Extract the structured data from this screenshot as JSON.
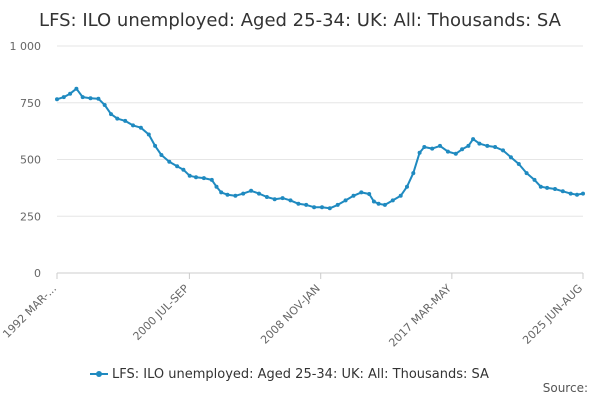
{
  "chart_data": {
    "type": "line",
    "title": "LFS: ILO unemployed: Aged 25-34: UK: All: Thousands: SA",
    "xlabel": "",
    "ylabel": "",
    "ylim": [
      0,
      1000
    ],
    "y_ticks": [
      0,
      250,
      500,
      750,
      1000
    ],
    "y_tick_labels": [
      "0",
      "250",
      "500",
      "750",
      "1 000"
    ],
    "x_tick_labels": [
      "1992 MAR-...",
      "2000 JUL-SEP",
      "2008 NOV-JAN",
      "2017 MAR-MAY",
      "2025 JUN-AUG"
    ],
    "x_tick_years": [
      1992.17,
      2000.58,
      2008.92,
      2017.25,
      2025.58
    ],
    "x_range": [
      1992.17,
      2025.58
    ],
    "grid": true,
    "legend_position": "bottom",
    "series": [
      {
        "name": "LFS: ILO unemployed: Aged 25-34: UK: All: Thousands: SA",
        "color": "#1f8ac0",
        "points": [
          [
            1992.17,
            765
          ],
          [
            1992.6,
            775
          ],
          [
            1993.0,
            790
          ],
          [
            1993.4,
            812
          ],
          [
            1993.8,
            775
          ],
          [
            1994.3,
            770
          ],
          [
            1994.8,
            768
          ],
          [
            1995.2,
            740
          ],
          [
            1995.6,
            700
          ],
          [
            1996.0,
            680
          ],
          [
            1996.5,
            670
          ],
          [
            1997.0,
            650
          ],
          [
            1997.5,
            640
          ],
          [
            1998.0,
            610
          ],
          [
            1998.4,
            560
          ],
          [
            1998.8,
            520
          ],
          [
            1999.3,
            490
          ],
          [
            1999.8,
            470
          ],
          [
            2000.2,
            455
          ],
          [
            2000.6,
            428
          ],
          [
            2001.0,
            422
          ],
          [
            2001.5,
            418
          ],
          [
            2002.0,
            410
          ],
          [
            2002.3,
            380
          ],
          [
            2002.6,
            355
          ],
          [
            2003.0,
            345
          ],
          [
            2003.5,
            340
          ],
          [
            2004.0,
            350
          ],
          [
            2004.5,
            362
          ],
          [
            2005.0,
            350
          ],
          [
            2005.5,
            335
          ],
          [
            2006.0,
            325
          ],
          [
            2006.5,
            330
          ],
          [
            2007.0,
            320
          ],
          [
            2007.5,
            305
          ],
          [
            2008.0,
            300
          ],
          [
            2008.5,
            290
          ],
          [
            2009.0,
            290
          ],
          [
            2009.5,
            285
          ],
          [
            2010.0,
            300
          ],
          [
            2010.5,
            320
          ],
          [
            2011.0,
            340
          ],
          [
            2011.5,
            355
          ],
          [
            2012.0,
            348
          ],
          [
            2012.3,
            315
          ],
          [
            2012.6,
            305
          ],
          [
            2013.0,
            300
          ],
          [
            2013.5,
            320
          ],
          [
            2014.0,
            340
          ],
          [
            2014.4,
            380
          ],
          [
            2014.8,
            440
          ],
          [
            2015.2,
            530
          ],
          [
            2015.5,
            555
          ],
          [
            2016.0,
            548
          ],
          [
            2016.5,
            560
          ],
          [
            2017.0,
            535
          ],
          [
            2017.5,
            525
          ],
          [
            2017.9,
            545
          ],
          [
            2018.3,
            560
          ],
          [
            2018.6,
            590
          ],
          [
            2019.0,
            570
          ],
          [
            2019.5,
            560
          ],
          [
            2020.0,
            555
          ],
          [
            2020.5,
            540
          ],
          [
            2021.0,
            510
          ],
          [
            2021.5,
            480
          ],
          [
            2022.0,
            440
          ],
          [
            2022.5,
            410
          ],
          [
            2022.9,
            380
          ],
          [
            2023.3,
            375
          ],
          [
            2023.8,
            370
          ],
          [
            2024.3,
            360
          ],
          [
            2024.8,
            350
          ],
          [
            2025.2,
            345
          ],
          [
            2025.58,
            350
          ]
        ]
      }
    ]
  }
}
